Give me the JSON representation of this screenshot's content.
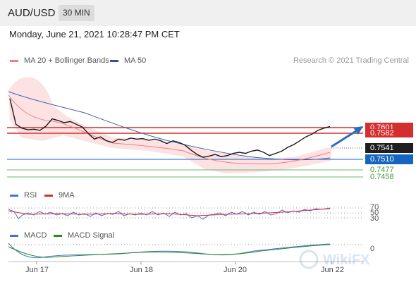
{
  "header": {
    "symbol": "AUD/USD",
    "timeframe": "30 MIN",
    "datetime": "Monday, June 21, 2021 10:28:47 PM CET"
  },
  "legend": {
    "ma20_label": "MA 20 + Bollinger Bands",
    "ma50_label": "MA 50",
    "credit": "Research © 2021 Trading Central",
    "rsi_label": "RSI",
    "rsi_ma_label": "9MA",
    "macd_label": "MACD",
    "macd_signal_label": "MACD Signal"
  },
  "price_levels": {
    "r2": "0.7601",
    "r1": "0.7582",
    "last": "0.7541",
    "pivot": "0.7510",
    "s1": "0.7477",
    "s2": "0.7458"
  },
  "rsi_levels": {
    "upper": "70",
    "mid": "50",
    "lower": "30"
  },
  "macd_level": "0",
  "x_axis": {
    "labels": [
      "Jun 17",
      "Jun 18",
      "Jun 20",
      "Jun 22"
    ]
  },
  "watermark": "WikiFX",
  "colors": {
    "resistance": "#d32f2f",
    "pivot": "#1565c0",
    "support": "#66bb6a",
    "ma20": "#f08080",
    "ma50": "#4a5fa8",
    "bollinger_fill": "#fbd3d3",
    "rsi": "#4a6fd8",
    "rsi_ma": "#d32f2f",
    "macd": "#4a6fd8",
    "macd_signal": "#2e8b22",
    "arrow": "#2a6ebb"
  },
  "chart_data": {
    "type": "candlestick",
    "y_range": [
      0.744,
      0.762
    ],
    "resistance": [
      0.7601,
      0.7582
    ],
    "pivot": 0.751,
    "support": [
      0.7477,
      0.7458
    ],
    "last_price": 0.7541,
    "target": 0.7601,
    "close_path": [
      0.7592,
      0.7545,
      0.7538,
      0.7535,
      0.7536,
      0.7534,
      0.7542,
      0.7555,
      0.7552,
      0.7548,
      0.755,
      0.7545,
      0.754,
      0.7528,
      0.7518,
      0.7522,
      0.7515,
      0.7512,
      0.7518,
      0.7516,
      0.752,
      0.7518,
      0.7519,
      0.7516,
      0.7518,
      0.7515,
      0.751,
      0.7515,
      0.7512,
      0.7507,
      0.7498,
      0.749,
      0.7485,
      0.7487,
      0.749,
      0.7486,
      0.7488,
      0.7492,
      0.7494,
      0.7492,
      0.7496,
      0.7498,
      0.7494,
      0.7488,
      0.7492,
      0.7496,
      0.7503,
      0.7508,
      0.7515,
      0.7522,
      0.7527,
      0.7534,
      0.7538,
      0.7541
    ]
  }
}
